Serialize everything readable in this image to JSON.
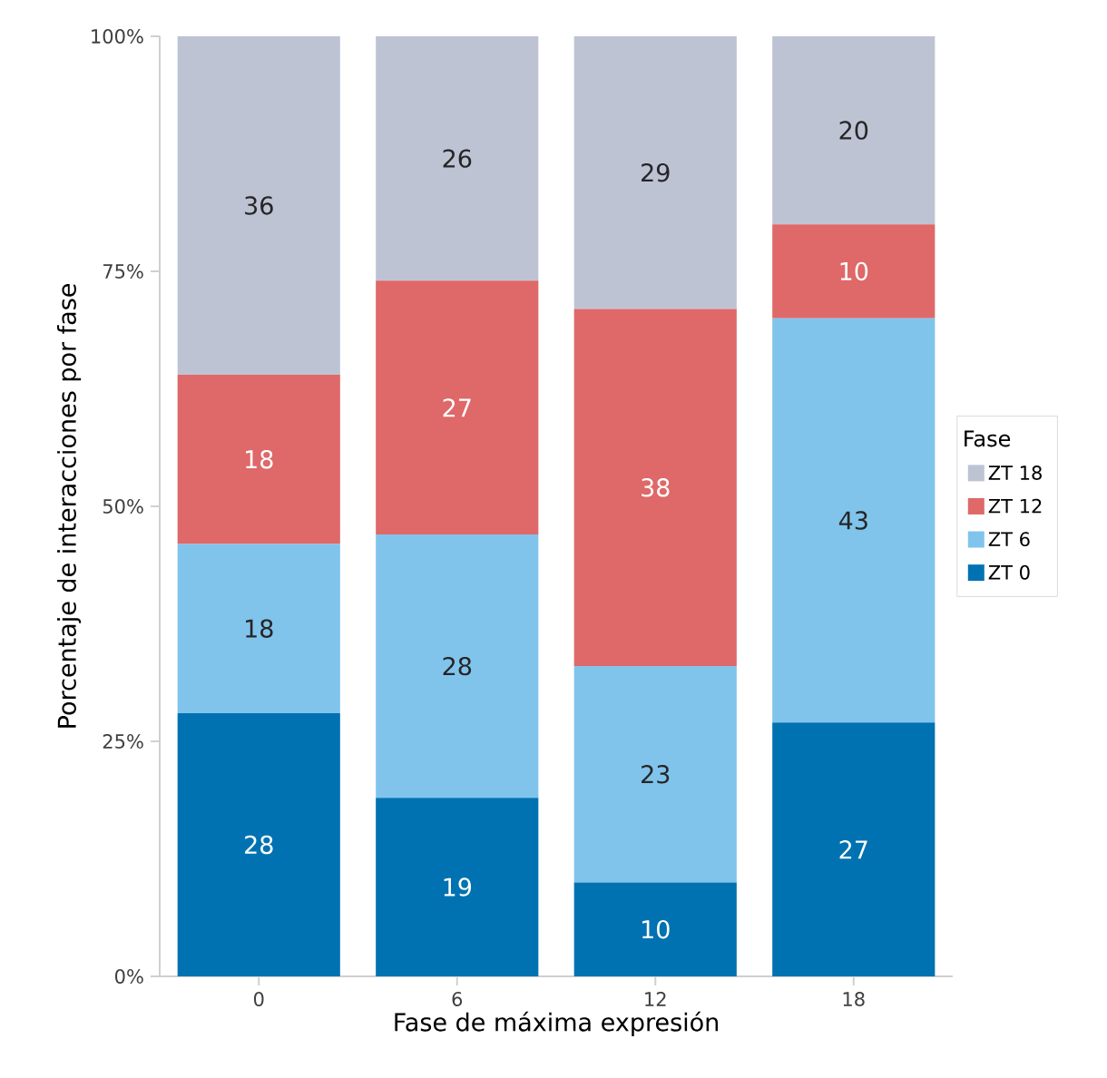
{
  "chart_data": {
    "type": "bar",
    "stacked": true,
    "xlabel": "Fase de máxima expresión",
    "ylabel": "Porcentaje de interacciones por fase",
    "legend_title": "Fase",
    "legend": "right",
    "data_labels": true,
    "categories": [
      "0",
      "6",
      "12",
      "18"
    ],
    "series": [
      {
        "name": "ZT 0",
        "color": "#0072b2",
        "values": [
          28,
          19,
          10,
          27
        ]
      },
      {
        "name": "ZT 6",
        "color": "#80c4ec",
        "values": [
          18,
          28,
          23,
          43
        ]
      },
      {
        "name": "ZT 12",
        "color": "#df6868",
        "values": [
          18,
          27,
          38,
          10
        ]
      },
      {
        "name": "ZT 18",
        "color": "#bec3d4",
        "values": [
          36,
          26,
          29,
          20
        ]
      }
    ],
    "ylim": [
      0,
      100
    ],
    "yticks": [
      {
        "value": 0,
        "label": "0%"
      },
      {
        "value": 25,
        "label": "25%"
      },
      {
        "value": 50,
        "label": "50%"
      },
      {
        "value": 75,
        "label": "75%"
      },
      {
        "value": 100,
        "label": "100%"
      }
    ]
  }
}
